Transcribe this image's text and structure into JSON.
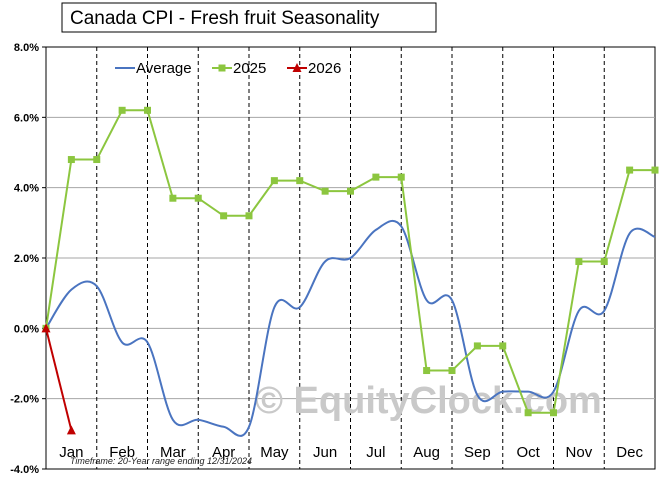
{
  "chart_data": {
    "type": "line",
    "title": "Canada  CPI - Fresh fruit Seasonality",
    "footnote": "Timeframe: 20-Year range ending 12/31/2024",
    "watermark": "© EquityClock.com",
    "ylim": [
      -4,
      8
    ],
    "y_ticks": [
      "8.0%",
      "6.0%",
      "4.0%",
      "2.0%",
      "0.0%",
      "-2.0%",
      "-4.0%"
    ],
    "y_tick_values": [
      8,
      6,
      4,
      2,
      0,
      -2,
      -4
    ],
    "months": [
      "Jan",
      "Feb",
      "Mar",
      "Apr",
      "May",
      "Jun",
      "Jul",
      "Aug",
      "Sep",
      "Oct",
      "Nov",
      "Dec"
    ],
    "x_range": [
      0,
      24
    ],
    "legend_position": "top",
    "series": [
      {
        "name": "Average",
        "color": "#4a74c0",
        "marker": "none",
        "x": [
          0,
          1,
          2,
          3,
          4,
          5,
          6,
          7,
          8,
          9,
          10,
          11,
          12,
          13,
          14,
          15,
          16,
          17,
          18,
          19,
          20,
          21,
          22,
          23,
          24
        ],
        "values": [
          0.0,
          1.1,
          1.2,
          -0.4,
          -0.4,
          -2.6,
          -2.6,
          -2.8,
          -2.8,
          0.6,
          0.6,
          1.9,
          2.0,
          2.8,
          2.9,
          0.8,
          0.8,
          -1.9,
          -1.8,
          -1.8,
          -1.8,
          0.5,
          0.5,
          2.7,
          2.6
        ]
      },
      {
        "name": "2025",
        "color": "#8cc63f",
        "marker": "square",
        "x": [
          0,
          1,
          2,
          3,
          4,
          5,
          6,
          7,
          8,
          9,
          10,
          11,
          12,
          13,
          14,
          15,
          16,
          17,
          18,
          19,
          20,
          21,
          22,
          23,
          24
        ],
        "values": [
          0.0,
          4.8,
          4.8,
          6.2,
          6.2,
          3.7,
          3.7,
          3.2,
          3.2,
          4.2,
          4.2,
          3.9,
          3.9,
          4.3,
          4.3,
          -1.2,
          -1.2,
          -0.5,
          -0.5,
          -2.4,
          -2.4,
          1.9,
          1.9,
          4.5,
          4.5
        ]
      },
      {
        "name": "2026",
        "color": "#c00000",
        "marker": "triangle",
        "x": [
          0,
          1
        ],
        "values": [
          0.0,
          -2.9
        ]
      }
    ]
  }
}
